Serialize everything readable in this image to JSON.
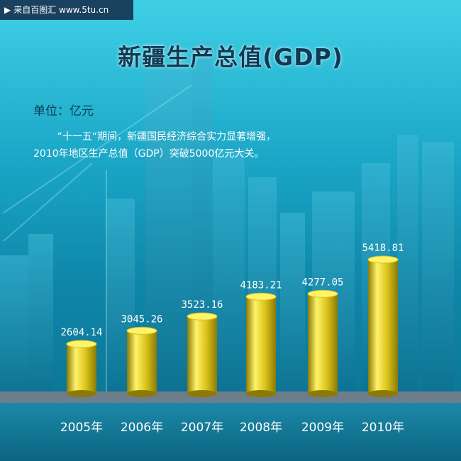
{
  "watermark": {
    "text": "来自百图汇 www.5tu.cn",
    "icon": "play-icon"
  },
  "header": {
    "title": "新疆生产总值(GDP)",
    "unit": "单位：亿元",
    "description": "“十一五“期间，新疆国民经济综合实力显著增强，2010年地区生产总值（GDP）突破5000亿元大关。"
  },
  "colors": {
    "bar_gold_light": "#fff36a",
    "bar_gold": "#d8c21a",
    "bar_gold_dark": "#8c7a06",
    "background_top": "#3fd0e6",
    "background_bottom": "#0b6f8e",
    "title_color": "#0e3a55"
  },
  "chart_data": {
    "type": "bar",
    "title": "新疆生产总值(GDP)",
    "ylabel": "单位：亿元",
    "xlabel": "",
    "categories": [
      "2005年",
      "2006年",
      "2007年",
      "2008年",
      "2009年",
      "2010年"
    ],
    "values": [
      2604.14,
      3045.26,
      3523.16,
      4183.21,
      4277.05,
      5418.81
    ],
    "value_labels": [
      "2604.14",
      "3045.26",
      "3523.16",
      "4183.21",
      "4277.05",
      "5418.81"
    ],
    "bar_style": "3d-cylinder",
    "grid": false,
    "legend": "none"
  }
}
